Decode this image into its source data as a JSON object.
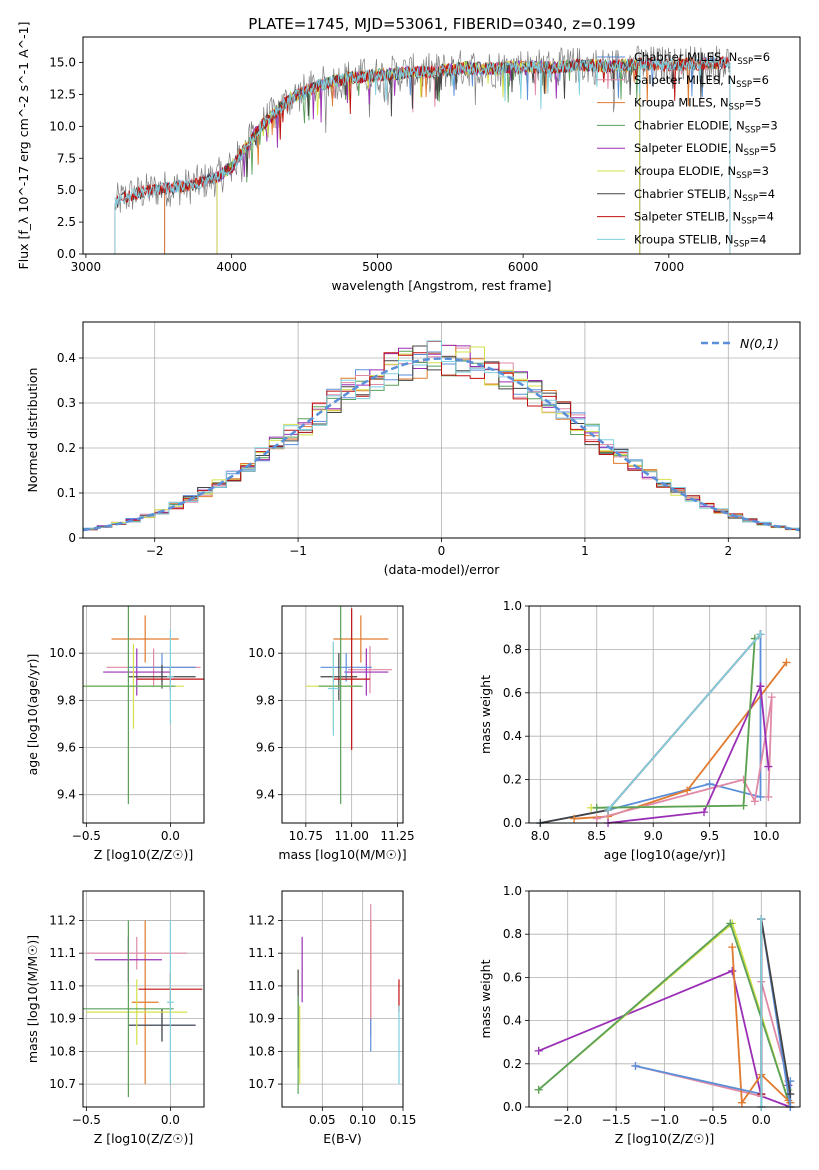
{
  "figure_title": "PLATE=1745, MJD=53061, FIBERID=0340, z=0.199",
  "chart_data": [
    {
      "id": "spectrum",
      "type": "line",
      "title": "PLATE=1745, MJD=53061, FIBERID=0340, z=0.199",
      "xlabel": "wavelength [Angstrom, rest frame]",
      "ylabel": "Flux [f_λ 10^-17 erg cm^-2 s^-1 A^-1]",
      "xlim": [
        2980,
        7900
      ],
      "ylim": [
        0,
        17
      ],
      "xticks": [
        3000,
        4000,
        5000,
        6000,
        7000
      ],
      "yticks": [
        0.0,
        2.5,
        5.0,
        7.5,
        10.0,
        12.5,
        15.0
      ],
      "grid": false,
      "legend_position": "right",
      "data_trace": {
        "x": [
          3200,
          3300,
          3500,
          3700,
          3900,
          4000,
          4200,
          4400,
          4600,
          4800,
          5000,
          5200,
          5400,
          5600,
          5800,
          6000,
          6200,
          6400,
          6600,
          6800,
          7000,
          7200,
          7400
        ],
        "y": [
          4.0,
          4.6,
          5.1,
          5.3,
          6.0,
          6.8,
          10.0,
          12.2,
          13.2,
          13.8,
          14.0,
          14.2,
          14.3,
          14.6,
          14.5,
          14.7,
          14.6,
          14.8,
          14.7,
          14.9,
          14.8,
          14.9,
          15.0
        ]
      },
      "series": [
        {
          "name": "Chabrier MILES, N_SSP=6",
          "color": "#5b8fd9",
          "xstart": 3540,
          "xend": 7420
        },
        {
          "name": "Salpeter MILES, N_SSP=6",
          "color": "#e08aa6",
          "xstart": 3540,
          "xend": 7420
        },
        {
          "name": "Kroupa MILES, N_SSP=5",
          "color": "#e07a2e",
          "xstart": 3540,
          "xend": 7420
        },
        {
          "name": "Chabrier ELODIE, N_SSP=3",
          "color": "#5aa05a",
          "xstart": 3900,
          "xend": 6800
        },
        {
          "name": "Salpeter ELODIE, N_SSP=5",
          "color": "#9a2fb5",
          "xstart": 3900,
          "xend": 6800
        },
        {
          "name": "Kroupa ELODIE, N_SSP=3",
          "color": "#d4e04a",
          "xstart": 3900,
          "xend": 6800
        },
        {
          "name": "Chabrier STELIB, N_SSP=4",
          "color": "#444444",
          "xstart": 3200,
          "xend": 7420
        },
        {
          "name": "Salpeter STELIB, N_SSP=4",
          "color": "#c01010",
          "xstart": 3200,
          "xend": 7420
        },
        {
          "name": "Kroupa STELIB, N_SSP=4",
          "color": "#7fd0e0",
          "xstart": 3200,
          "xend": 7420
        }
      ]
    },
    {
      "id": "residuals",
      "type": "line",
      "xlabel": "(data-model)/error",
      "ylabel": "Normed distribution",
      "xlim": [
        -2.5,
        2.5
      ],
      "ylim": [
        0,
        0.48
      ],
      "xticks": [
        -2,
        -1,
        0,
        1,
        2
      ],
      "yticks": [
        0.0,
        0.1,
        0.2,
        0.3,
        0.4
      ],
      "grid": true,
      "legend": "N(0,1)",
      "legend_position": "top-right",
      "gaussian_color": "#5b8fd9"
    },
    {
      "id": "age_vs_Z",
      "type": "scatter",
      "xlabel": "Z [log10(Z/Z☉)]",
      "ylabel": "age  [log10(age/yr)]",
      "xlim": [
        -0.52,
        0.2
      ],
      "ylim": [
        9.28,
        10.2
      ],
      "xticks": [
        -0.5,
        0.0
      ],
      "yticks": [
        9.4,
        9.6,
        9.8,
        10.0
      ],
      "grid": true,
      "points": [
        {
          "x": -0.15,
          "y": 10.06,
          "xerr": 0.2,
          "yerr": 0.1,
          "color": "#e07a2e"
        },
        {
          "x": -0.1,
          "y": 9.94,
          "xerr": 0.28,
          "yerr": 0.08,
          "color": "#e08aa6"
        },
        {
          "x": -0.2,
          "y": 9.92,
          "xerr": 0.2,
          "yerr": 0.1,
          "color": "#9a2fb5"
        },
        {
          "x": -0.05,
          "y": 9.94,
          "xerr": 0.2,
          "yerr": 0.06,
          "color": "#5b8fd9"
        },
        {
          "x": -0.05,
          "y": 9.9,
          "xerr": 0.2,
          "yerr": 0.05,
          "color": "#444444"
        },
        {
          "x": 0.0,
          "y": 9.89,
          "xerr": 0.2,
          "yerr": 0.05,
          "color": "#c01010"
        },
        {
          "x": -0.22,
          "y": 9.86,
          "xerr": 0.3,
          "yerr": 0.18,
          "color": "#d4e04a"
        },
        {
          "x": -0.25,
          "y": 9.86,
          "xerr": 0.28,
          "yerr": 0.5,
          "color": "#5aa05a"
        },
        {
          "x": 0.0,
          "y": 9.9,
          "xerr": 0.02,
          "yerr": 0.2,
          "color": "#7fd0e0"
        }
      ]
    },
    {
      "id": "age_vs_mass",
      "type": "scatter",
      "xlabel": "mass [log10(M/M☉)]",
      "xlim": [
        10.62,
        11.28
      ],
      "ylim": [
        9.28,
        10.2
      ],
      "xticks": [
        10.75,
        11.0,
        11.25
      ],
      "yticks": [
        9.4,
        9.6,
        9.8,
        10.0
      ],
      "grid": true,
      "points": [
        {
          "x": 11.05,
          "y": 10.06,
          "xerr": 0.15,
          "yerr": 0.1,
          "color": "#e07a2e"
        },
        {
          "x": 11.1,
          "y": 9.93,
          "xerr": 0.12,
          "yerr": 0.1,
          "color": "#e08aa6"
        },
        {
          "x": 11.08,
          "y": 9.92,
          "xerr": 0.12,
          "yerr": 0.1,
          "color": "#9a2fb5"
        },
        {
          "x": 10.97,
          "y": 9.94,
          "xerr": 0.14,
          "yerr": 0.06,
          "color": "#5b8fd9"
        },
        {
          "x": 10.93,
          "y": 9.9,
          "xerr": 0.1,
          "yerr": 0.1,
          "color": "#444444"
        },
        {
          "x": 11.0,
          "y": 9.89,
          "xerr": 0.1,
          "yerr": 0.3,
          "color": "#c01010"
        },
        {
          "x": 10.9,
          "y": 9.86,
          "xerr": 0.15,
          "yerr": 0.18,
          "color": "#d4e04a"
        },
        {
          "x": 10.94,
          "y": 9.86,
          "xerr": 0.12,
          "yerr": 0.5,
          "color": "#5aa05a"
        },
        {
          "x": 10.9,
          "y": 9.85,
          "xerr": 0.03,
          "yerr": 0.2,
          "color": "#7fd0e0"
        }
      ]
    },
    {
      "id": "weight_vs_age",
      "type": "line",
      "xlabel": "age  [log10(age/yr)]",
      "ylabel": "mass weight",
      "xlim": [
        7.9,
        10.3
      ],
      "ylim": [
        0.0,
        1.0
      ],
      "xticks": [
        8.0,
        8.5,
        9.0,
        9.5,
        10.0
      ],
      "yticks": [
        0.0,
        0.2,
        0.4,
        0.6,
        0.8,
        1.0
      ],
      "grid": true,
      "series": [
        {
          "color": "#5b8fd9",
          "x": [
            8.0,
            8.6,
            9.5,
            9.95,
            9.95
          ],
          "y": [
            0.0,
            0.06,
            0.18,
            0.12,
            0.87
          ]
        },
        {
          "color": "#444444",
          "x": [
            8.0,
            8.6,
            9.95
          ],
          "y": [
            0.0,
            0.06,
            0.87
          ]
        },
        {
          "color": "#c01010",
          "x": [
            8.6,
            9.95
          ],
          "y": [
            0.06,
            0.87
          ]
        },
        {
          "color": "#e07a2e",
          "x": [
            8.3,
            8.6,
            9.3,
            10.18
          ],
          "y": [
            0.02,
            0.03,
            0.15,
            0.74
          ]
        },
        {
          "color": "#e08aa6",
          "x": [
            8.5,
            9.8,
            9.9,
            10.05,
            10.02
          ],
          "y": [
            0.02,
            0.2,
            0.1,
            0.58,
            0.12
          ]
        },
        {
          "color": "#9a2fb5",
          "x": [
            8.6,
            9.45,
            9.95,
            10.02,
            9.95
          ],
          "y": [
            0.0,
            0.05,
            0.63,
            0.26,
            0.63
          ]
        },
        {
          "color": "#d4e04a",
          "x": [
            8.45,
            9.8,
            9.9
          ],
          "y": [
            0.07,
            0.08,
            0.85
          ]
        },
        {
          "color": "#5aa05a",
          "x": [
            8.5,
            9.8,
            9.9
          ],
          "y": [
            0.07,
            0.08,
            0.85
          ]
        },
        {
          "color": "#7fd0e0",
          "x": [
            8.6,
            9.95
          ],
          "y": [
            0.06,
            0.87
          ]
        }
      ]
    },
    {
      "id": "mass_vs_Z",
      "type": "scatter",
      "xlabel": "Z [log10(Z/Z☉)]",
      "ylabel": "mass [log10(M/M☉)]",
      "xlim": [
        -0.52,
        0.2
      ],
      "ylim": [
        10.63,
        11.29
      ],
      "xticks": [
        -0.5,
        0.0
      ],
      "yticks": [
        10.7,
        10.8,
        10.9,
        11.0,
        11.1,
        11.2
      ],
      "grid": true,
      "points": [
        {
          "x": -0.15,
          "y": 10.95,
          "xerr": 0.08,
          "yerr": 0.25,
          "color": "#e07a2e"
        },
        {
          "x": -0.2,
          "y": 11.1,
          "xerr": 0.3,
          "yerr": 0.05,
          "color": "#e08aa6"
        },
        {
          "x": -0.25,
          "y": 11.08,
          "xerr": 0.2,
          "yerr": 0.07,
          "color": "#9a2fb5"
        },
        {
          "x": -0.05,
          "y": 10.88,
          "xerr": 0.2,
          "yerr": 0.05,
          "color": "#5b8fd9"
        },
        {
          "x": -0.05,
          "y": 10.88,
          "xerr": 0.2,
          "yerr": 0.05,
          "color": "#444444"
        },
        {
          "x": 0.0,
          "y": 10.99,
          "xerr": 0.19,
          "yerr": 0.05,
          "color": "#c01010"
        },
        {
          "x": -0.2,
          "y": 10.92,
          "xerr": 0.3,
          "yerr": 0.1,
          "color": "#d4e04a"
        },
        {
          "x": -0.25,
          "y": 10.93,
          "xerr": 0.27,
          "yerr": 0.27,
          "color": "#5aa05a"
        },
        {
          "x": 0.0,
          "y": 10.95,
          "xerr": 0.02,
          "yerr": 0.25,
          "color": "#7fd0e0"
        }
      ]
    },
    {
      "id": "mass_vs_ebv",
      "type": "scatter",
      "xlabel": "E(B-V)",
      "xlim": [
        0.0,
        0.15
      ],
      "ylim": [
        10.63,
        11.29
      ],
      "xticks": [
        0.05,
        0.1,
        0.15
      ],
      "yticks": [
        10.7,
        10.8,
        10.9,
        11.0,
        11.1,
        11.2
      ],
      "grid": true,
      "points": [
        {
          "x": 0.11,
          "y": 11.05,
          "xerr": 0.0,
          "yerr": 0.15,
          "color": "#e07a2e"
        },
        {
          "x": 0.11,
          "y": 11.05,
          "xerr": 0.0,
          "yerr": 0.2,
          "color": "#e08aa6"
        },
        {
          "x": 0.025,
          "y": 11.05,
          "xerr": 0.0,
          "yerr": 0.1,
          "color": "#9a2fb5"
        },
        {
          "x": 0.11,
          "y": 10.85,
          "xerr": 0.0,
          "yerr": 0.05,
          "color": "#5b8fd9"
        },
        {
          "x": 0.02,
          "y": 10.9,
          "xerr": 0.0,
          "yerr": 0.15,
          "color": "#444444"
        },
        {
          "x": 0.145,
          "y": 10.97,
          "xerr": 0.0,
          "yerr": 0.05,
          "color": "#c01010"
        },
        {
          "x": 0.022,
          "y": 10.82,
          "xerr": 0.0,
          "yerr": 0.12,
          "color": "#d4e04a"
        },
        {
          "x": 0.02,
          "y": 10.82,
          "xerr": 0.0,
          "yerr": 0.15,
          "color": "#5aa05a"
        },
        {
          "x": 0.145,
          "y": 10.82,
          "xerr": 0.0,
          "yerr": 0.12,
          "color": "#7fd0e0"
        }
      ]
    },
    {
      "id": "weight_vs_Z",
      "type": "line",
      "xlabel": "Z [log10(Z/Z☉)]",
      "ylabel": "mass weight",
      "xlim": [
        -2.4,
        0.4
      ],
      "ylim": [
        0.0,
        1.0
      ],
      "xticks": [
        -2.0,
        -1.5,
        -1.0,
        -0.5,
        0.0
      ],
      "yticks": [
        0.0,
        0.2,
        0.4,
        0.6,
        0.8,
        1.0
      ],
      "grid": true,
      "series": [
        {
          "color": "#9a2fb5",
          "x": [
            -2.3,
            -0.3,
            0.0,
            0.3,
            0.28
          ],
          "y": [
            0.26,
            0.63,
            0.05,
            0.0,
            0.1
          ]
        },
        {
          "color": "#d4e04a",
          "x": [
            -2.3,
            -0.3,
            0.3,
            0.28
          ],
          "y": [
            0.08,
            0.85,
            0.0,
            0.08
          ]
        },
        {
          "color": "#5aa05a",
          "x": [
            -2.3,
            -0.32,
            0.3
          ],
          "y": [
            0.08,
            0.85,
            0.0
          ]
        },
        {
          "color": "#e08aa6",
          "x": [
            -1.3,
            0.0,
            0.0,
            0.28,
            0.3
          ],
          "y": [
            0.19,
            0.05,
            0.58,
            0.12,
            0.0
          ]
        },
        {
          "color": "#e07a2e",
          "x": [
            -0.3,
            -0.2,
            0.0,
            0.28,
            0.3
          ],
          "y": [
            0.74,
            0.02,
            0.15,
            0.03,
            0.02
          ]
        },
        {
          "color": "#5b8fd9",
          "x": [
            -1.3,
            0.0,
            0.0,
            0.3,
            0.3
          ],
          "y": [
            0.19,
            0.06,
            0.87,
            0.0,
            0.12
          ]
        },
        {
          "color": "#444444",
          "x": [
            0.0,
            0.0,
            0.3
          ],
          "y": [
            0.0,
            0.87,
            0.06
          ]
        },
        {
          "color": "#c01010",
          "x": [
            0.0,
            0.0
          ],
          "y": [
            0.06,
            0.87
          ]
        },
        {
          "color": "#7fd0e0",
          "x": [
            0.0,
            0.0
          ],
          "y": [
            0.0,
            0.87
          ]
        }
      ]
    }
  ]
}
